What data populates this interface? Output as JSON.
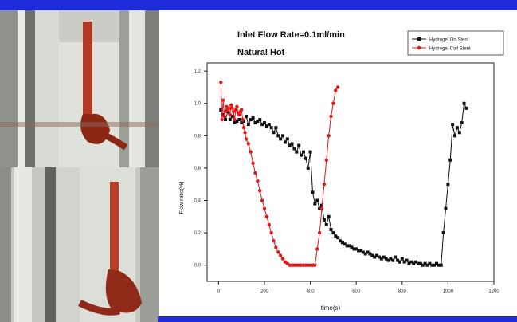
{
  "page": {
    "banner_color": "#1f2ad8"
  },
  "photos": {
    "top": {
      "icon": "tube-clot-photo-icon"
    },
    "bottom": {
      "icon": "tube-clot-photo-icon"
    }
  },
  "chart_data": {
    "type": "line",
    "title": "Inlet Flow Rate=0.1ml/min",
    "subtitle": "Natural Hot",
    "xlabel": "time(s)",
    "ylabel": "Flow ratio(%)",
    "xlim": [
      -50,
      1200
    ],
    "ylim": [
      -0.1,
      1.25
    ],
    "xticks": [
      0,
      200,
      400,
      600,
      800,
      1000,
      1200
    ],
    "xtick_labels": [
      "0",
      "200",
      "400",
      "600",
      "800",
      "1000",
      "1200"
    ],
    "yticks": [
      0.0,
      0.2,
      0.4,
      0.6,
      0.8,
      1.0,
      1.2
    ],
    "ytick_labels": [
      "0.0",
      "0.2",
      "0.4",
      "0.6",
      "0.8",
      "1.0",
      "1.2"
    ],
    "legend_position": "top-right",
    "series": [
      {
        "name": "Hydrogel On Stent",
        "color": "#111111",
        "marker": "square",
        "x": [
          10,
          20,
          30,
          40,
          50,
          60,
          70,
          80,
          90,
          100,
          110,
          120,
          130,
          140,
          150,
          160,
          170,
          180,
          190,
          200,
          210,
          220,
          230,
          240,
          250,
          260,
          270,
          280,
          290,
          300,
          310,
          320,
          330,
          340,
          350,
          360,
          370,
          380,
          390,
          400,
          410,
          420,
          430,
          440,
          450,
          460,
          470,
          480,
          490,
          500,
          510,
          520,
          530,
          540,
          550,
          560,
          570,
          580,
          590,
          600,
          610,
          620,
          630,
          640,
          650,
          660,
          670,
          680,
          690,
          700,
          710,
          720,
          730,
          740,
          750,
          760,
          770,
          780,
          790,
          800,
          810,
          820,
          830,
          840,
          850,
          860,
          870,
          880,
          890,
          900,
          910,
          920,
          930,
          940,
          950,
          960,
          970,
          980,
          990,
          1000,
          1010,
          1020,
          1030,
          1040,
          1050,
          1060,
          1070,
          1080
        ],
        "values": [
          0.96,
          0.93,
          0.9,
          0.95,
          0.9,
          0.92,
          0.88,
          0.89,
          0.9,
          0.88,
          0.89,
          0.92,
          0.87,
          0.9,
          0.91,
          0.88,
          0.89,
          0.9,
          0.87,
          0.88,
          0.86,
          0.87,
          0.85,
          0.82,
          0.85,
          0.8,
          0.78,
          0.8,
          0.76,
          0.78,
          0.74,
          0.75,
          0.72,
          0.7,
          0.74,
          0.68,
          0.7,
          0.66,
          0.6,
          0.7,
          0.45,
          0.38,
          0.4,
          0.35,
          0.37,
          0.28,
          0.25,
          0.3,
          0.22,
          0.2,
          0.18,
          0.17,
          0.15,
          0.14,
          0.13,
          0.12,
          0.12,
          0.11,
          0.1,
          0.1,
          0.09,
          0.09,
          0.08,
          0.07,
          0.08,
          0.07,
          0.06,
          0.05,
          0.06,
          0.05,
          0.04,
          0.05,
          0.04,
          0.03,
          0.04,
          0.03,
          0.05,
          0.03,
          0.02,
          0.04,
          0.02,
          0.03,
          0.01,
          0.02,
          0.01,
          0.02,
          0.01,
          0.01,
          0.0,
          0.01,
          0.0,
          0.01,
          0.0,
          0.0,
          0.01,
          0.0,
          0.0,
          0.2,
          0.35,
          0.5,
          0.65,
          0.87,
          0.8,
          0.85,
          0.82,
          0.88,
          1.0,
          0.97
        ]
      },
      {
        "name": "Hydrogel Coil Stent",
        "color": "#e01818",
        "marker": "circle",
        "x": [
          10,
          15,
          20,
          25,
          30,
          35,
          40,
          45,
          50,
          55,
          60,
          65,
          70,
          75,
          80,
          85,
          90,
          95,
          100,
          105,
          110,
          115,
          120,
          130,
          140,
          150,
          160,
          170,
          180,
          190,
          200,
          210,
          220,
          230,
          240,
          250,
          260,
          270,
          280,
          290,
          300,
          310,
          320,
          330,
          340,
          350,
          360,
          370,
          380,
          390,
          400,
          410,
          420,
          430,
          440,
          450,
          460,
          470,
          480,
          490,
          500,
          510,
          520
        ],
        "values": [
          1.13,
          0.9,
          1.02,
          0.92,
          0.95,
          0.98,
          0.96,
          0.97,
          0.93,
          0.99,
          0.97,
          0.95,
          0.9,
          0.96,
          0.98,
          0.94,
          0.93,
          0.95,
          0.96,
          0.9,
          0.85,
          0.82,
          0.78,
          0.75,
          0.7,
          0.63,
          0.57,
          0.52,
          0.46,
          0.4,
          0.35,
          0.3,
          0.25,
          0.2,
          0.15,
          0.11,
          0.08,
          0.06,
          0.04,
          0.02,
          0.01,
          0.0,
          0.0,
          0.0,
          0.0,
          0.0,
          0.0,
          0.0,
          0.0,
          0.0,
          0.0,
          0.0,
          0.0,
          0.1,
          0.2,
          0.35,
          0.5,
          0.65,
          0.8,
          0.92,
          1.0,
          1.08,
          1.1
        ]
      }
    ]
  }
}
